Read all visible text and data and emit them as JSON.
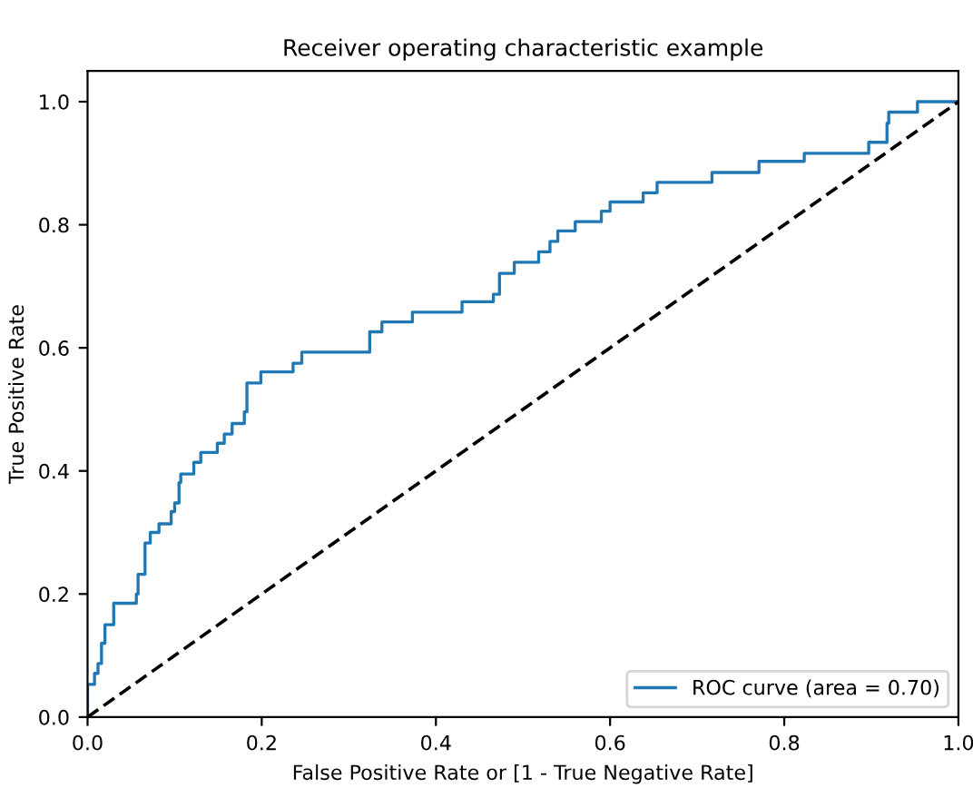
{
  "chart_data": {
    "type": "line",
    "title": "Receiver operating characteristic example",
    "xlabel": "False Positive Rate or [1 - True Negative Rate]",
    "ylabel": "True Positive Rate",
    "series": [
      {
        "name": "ROC curve (area = 0.70)",
        "color": "#1f77b4",
        "line_style": "solid",
        "x": [
          0,
          0,
          0.008,
          0.008,
          0.012,
          0.012,
          0.016,
          0.016,
          0.02,
          0.02,
          0.03,
          0.03,
          0.056,
          0.056,
          0.058,
          0.058,
          0.066,
          0.066,
          0.072,
          0.072,
          0.082,
          0.082,
          0.096,
          0.096,
          0.1,
          0.1,
          0.105,
          0.105,
          0.107,
          0.107,
          0.122,
          0.122,
          0.13,
          0.13,
          0.149,
          0.149,
          0.157,
          0.157,
          0.166,
          0.166,
          0.18,
          0.18,
          0.183,
          0.183,
          0.199,
          0.199,
          0.236,
          0.236,
          0.246,
          0.246,
          0.324,
          0.324,
          0.338,
          0.338,
          0.373,
          0.373,
          0.43,
          0.43,
          0.466,
          0.466,
          0.473,
          0.473,
          0.49,
          0.49,
          0.518,
          0.518,
          0.531,
          0.531,
          0.54,
          0.54,
          0.56,
          0.56,
          0.59,
          0.59,
          0.6,
          0.6,
          0.638,
          0.638,
          0.654,
          0.654,
          0.717,
          0.717,
          0.771,
          0.771,
          0.823,
          0.823,
          0.897,
          0.897,
          0.918,
          0.918,
          0.92,
          0.92,
          0.953,
          0.953,
          1.0
        ],
        "values": [
          0,
          0.053,
          0.053,
          0.071,
          0.071,
          0.087,
          0.087,
          0.12,
          0.12,
          0.15,
          0.15,
          0.185,
          0.185,
          0.2,
          0.2,
          0.232,
          0.232,
          0.283,
          0.283,
          0.3,
          0.3,
          0.314,
          0.314,
          0.334,
          0.334,
          0.348,
          0.348,
          0.381,
          0.381,
          0.395,
          0.395,
          0.414,
          0.414,
          0.43,
          0.43,
          0.445,
          0.445,
          0.46,
          0.46,
          0.477,
          0.477,
          0.496,
          0.496,
          0.543,
          0.543,
          0.561,
          0.561,
          0.575,
          0.575,
          0.593,
          0.593,
          0.626,
          0.626,
          0.642,
          0.642,
          0.658,
          0.658,
          0.675,
          0.675,
          0.687,
          0.687,
          0.721,
          0.721,
          0.739,
          0.739,
          0.756,
          0.756,
          0.773,
          0.773,
          0.79,
          0.79,
          0.805,
          0.805,
          0.822,
          0.822,
          0.837,
          0.837,
          0.852,
          0.852,
          0.869,
          0.869,
          0.885,
          0.885,
          0.903,
          0.903,
          0.916,
          0.916,
          0.934,
          0.934,
          0.965,
          0.965,
          0.983,
          0.983,
          1.0,
          1.0
        ]
      },
      {
        "color": "#000000",
        "line_style": "dashed",
        "x": [
          0,
          1
        ],
        "values": [
          0,
          1
        ]
      }
    ],
    "xlim": [
      0,
      1
    ],
    "ylim": [
      0,
      1.05
    ],
    "xticks": [
      {
        "value": 0,
        "label": "0.0"
      },
      {
        "value": 0.2,
        "label": "0.2"
      },
      {
        "value": 0.4,
        "label": "0.4"
      },
      {
        "value": 0.6,
        "label": "0.6"
      },
      {
        "value": 0.8,
        "label": "0.8"
      },
      {
        "value": 1,
        "label": "1.0"
      }
    ],
    "yticks": [
      {
        "value": 0,
        "label": "0.0"
      },
      {
        "value": 0.2,
        "label": "0.2"
      },
      {
        "value": 0.4,
        "label": "0.4"
      },
      {
        "value": 0.6,
        "label": "0.6"
      },
      {
        "value": 0.8,
        "label": "0.8"
      },
      {
        "value": 1,
        "label": "1.0"
      }
    ],
    "legend": "lower right",
    "grid": false,
    "marker": "none"
  }
}
